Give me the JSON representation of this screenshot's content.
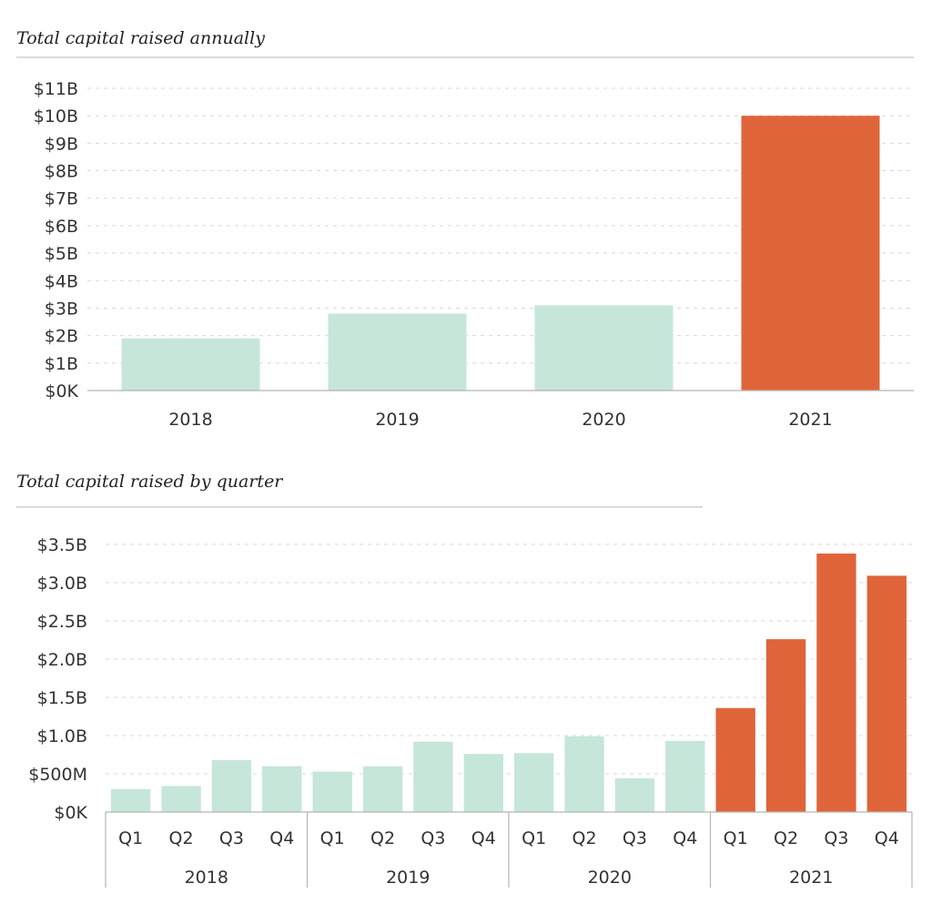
{
  "colors": {
    "prior": "#c6e6da",
    "highlight": "#e0643a"
  },
  "chart_data": [
    {
      "type": "bar",
      "title": "Total capital raised annually",
      "categories": [
        "2018",
        "2019",
        "2020",
        "2021"
      ],
      "values": [
        1.9,
        2.8,
        3.1,
        10.0
      ],
      "value_unit": "billion USD",
      "ylim": [
        0,
        11
      ],
      "yticks": [
        0,
        1,
        2,
        3,
        4,
        5,
        6,
        7,
        8,
        9,
        10,
        11
      ],
      "ytick_labels": [
        "$0K",
        "$1B",
        "$2B",
        "$3B",
        "$4B",
        "$5B",
        "$6B",
        "$7B",
        "$8B",
        "$9B",
        "$10B",
        "$11B"
      ],
      "highlight": [
        "2021"
      ],
      "grid": true
    },
    {
      "type": "bar",
      "title": "Total capital raised by quarter",
      "groups": [
        {
          "label": "2018",
          "categories": [
            "Q1",
            "Q2",
            "Q3",
            "Q4"
          ],
          "values": [
            0.3,
            0.34,
            0.68,
            0.6
          ],
          "highlight": false
        },
        {
          "label": "2019",
          "categories": [
            "Q1",
            "Q2",
            "Q3",
            "Q4"
          ],
          "values": [
            0.53,
            0.6,
            0.92,
            0.76
          ],
          "highlight": false
        },
        {
          "label": "2020",
          "categories": [
            "Q1",
            "Q2",
            "Q3",
            "Q4"
          ],
          "values": [
            0.77,
            0.99,
            0.44,
            0.93
          ],
          "highlight": false
        },
        {
          "label": "2021",
          "categories": [
            "Q1",
            "Q2",
            "Q3",
            "Q4"
          ],
          "values": [
            1.36,
            2.26,
            3.38,
            3.09
          ],
          "highlight": true
        }
      ],
      "value_unit": "billion USD",
      "ylim": [
        0,
        3.5
      ],
      "yticks": [
        0,
        0.5,
        1.0,
        1.5,
        2.0,
        2.5,
        3.0,
        3.5
      ],
      "ytick_labels": [
        "$0K",
        "$500M",
        "$1.0B",
        "$1.5B",
        "$2.0B",
        "$2.5B",
        "$3.0B",
        "$3.5B"
      ],
      "grid": true
    }
  ]
}
